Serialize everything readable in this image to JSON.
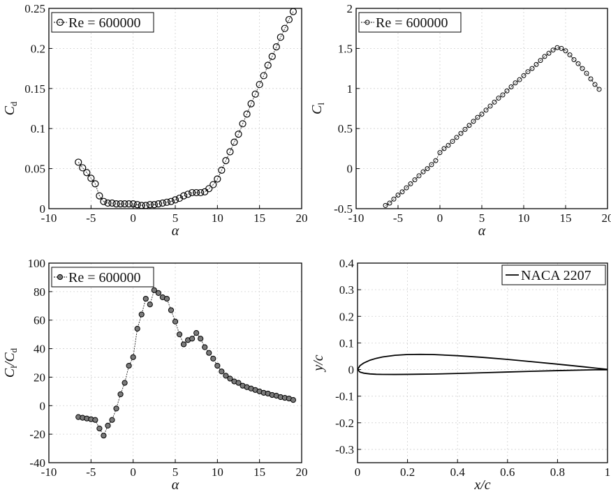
{
  "chart_data": [
    {
      "id": "cd",
      "type": "line",
      "xlabel": "α",
      "ylabel": "C",
      "ylabel_sub": "d",
      "xlim": [
        -10,
        20
      ],
      "ylim": [
        0,
        0.25
      ],
      "xticks": [
        "-10",
        "-5",
        "0",
        "5",
        "10",
        "15",
        "20"
      ],
      "yticks": [
        "0",
        "0.05",
        "0.1",
        "0.15",
        "0.2",
        "0.25"
      ],
      "grid": true,
      "legend_position": "top-left",
      "series": [
        {
          "name": "Re = 600000",
          "marker": "circle-open",
          "x": [
            -6.5,
            -6,
            -5.5,
            -5,
            -4.5,
            -4,
            -3.5,
            -3,
            -2.5,
            -2,
            -1.5,
            -1,
            -0.5,
            0,
            0.5,
            1,
            1.5,
            2,
            2.5,
            3,
            3.5,
            4,
            4.5,
            5,
            5.5,
            6,
            6.5,
            7,
            7.5,
            8,
            8.5,
            9,
            9.5,
            10,
            10.5,
            11,
            11.5,
            12,
            12.5,
            13,
            13.5,
            14,
            14.5,
            15,
            15.5,
            16,
            16.5,
            17,
            17.5,
            18,
            18.5,
            19
          ],
          "y": [
            0.058,
            0.051,
            0.045,
            0.038,
            0.031,
            0.016,
            0.009,
            0.007,
            0.007,
            0.006,
            0.006,
            0.006,
            0.006,
            0.006,
            0.005,
            0.004,
            0.004,
            0.005,
            0.005,
            0.006,
            0.007,
            0.008,
            0.009,
            0.011,
            0.013,
            0.016,
            0.018,
            0.02,
            0.02,
            0.02,
            0.021,
            0.025,
            0.03,
            0.037,
            0.048,
            0.06,
            0.071,
            0.083,
            0.093,
            0.106,
            0.118,
            0.131,
            0.143,
            0.155,
            0.166,
            0.179,
            0.19,
            0.202,
            0.214,
            0.225,
            0.236,
            0.246
          ]
        }
      ]
    },
    {
      "id": "cl",
      "type": "line",
      "xlabel": "α",
      "ylabel": "C",
      "ylabel_sub": "l",
      "xlim": [
        -10,
        20
      ],
      "ylim": [
        -0.5,
        2
      ],
      "xticks": [
        "-10",
        "-5",
        "0",
        "5",
        "10",
        "15",
        "20"
      ],
      "yticks": [
        "-0.5",
        "0",
        "0.5",
        "1",
        "1.5",
        "2"
      ],
      "grid": true,
      "legend_position": "top-left",
      "series": [
        {
          "name": "Re = 600000",
          "marker": "circle-open-small",
          "x": [
            -6.5,
            -6,
            -5.5,
            -5,
            -4.5,
            -4,
            -3.5,
            -3,
            -2.5,
            -2,
            -1.5,
            -1,
            -0.5,
            0,
            0.5,
            1,
            1.5,
            2,
            2.5,
            3,
            3.5,
            4,
            4.5,
            5,
            5.5,
            6,
            6.5,
            7,
            7.5,
            8,
            8.5,
            9,
            9.5,
            10,
            10.5,
            11,
            11.5,
            12,
            12.5,
            13,
            13.5,
            14,
            14.5,
            15,
            15.5,
            16,
            16.5,
            17,
            17.5,
            18,
            18.5,
            19
          ],
          "y": [
            -0.46,
            -0.43,
            -0.38,
            -0.33,
            -0.29,
            -0.24,
            -0.19,
            -0.14,
            -0.09,
            -0.04,
            0.0,
            0.05,
            0.1,
            0.2,
            0.25,
            0.29,
            0.34,
            0.39,
            0.44,
            0.49,
            0.54,
            0.59,
            0.64,
            0.68,
            0.73,
            0.78,
            0.83,
            0.88,
            0.92,
            0.97,
            1.02,
            1.07,
            1.11,
            1.16,
            1.21,
            1.25,
            1.3,
            1.35,
            1.4,
            1.44,
            1.48,
            1.51,
            1.5,
            1.47,
            1.42,
            1.36,
            1.31,
            1.25,
            1.19,
            1.12,
            1.05,
            0.99
          ]
        }
      ]
    },
    {
      "id": "clcd",
      "type": "line",
      "xlabel": "α",
      "ylabel": "C",
      "ylabel_sub": "l",
      "ylabel_mid": "/C",
      "ylabel_sub2": "d",
      "xlim": [
        -10,
        20
      ],
      "ylim": [
        -40,
        100
      ],
      "xticks": [
        "-10",
        "-5",
        "0",
        "5",
        "10",
        "15",
        "20"
      ],
      "yticks": [
        "-40",
        "-20",
        "0",
        "20",
        "40",
        "60",
        "80",
        "100"
      ],
      "grid": true,
      "legend_position": "top-left",
      "series": [
        {
          "name": "Re = 600000",
          "marker": "circle-filled",
          "x": [
            -6.5,
            -6,
            -5.5,
            -5,
            -4.5,
            -4,
            -3.5,
            -3,
            -2.5,
            -2,
            -1.5,
            -1,
            -0.5,
            0,
            0.5,
            1,
            1.5,
            2,
            2.5,
            3,
            3.5,
            4,
            4.5,
            5,
            5.5,
            6,
            6.5,
            7,
            7.5,
            8,
            8.5,
            9,
            9.5,
            10,
            10.5,
            11,
            11.5,
            12,
            12.5,
            13,
            13.5,
            14,
            14.5,
            15,
            15.5,
            16,
            16.5,
            17,
            17.5,
            18,
            18.5,
            19
          ],
          "y": [
            -8,
            -8.5,
            -9,
            -9.5,
            -10,
            -16,
            -21,
            -14,
            -10,
            -2,
            8,
            16,
            28,
            34,
            54,
            64,
            75,
            71,
            81,
            79,
            76,
            75,
            67,
            59,
            50,
            43,
            46,
            47,
            51,
            47,
            41,
            37,
            33,
            28,
            24,
            21,
            19,
            17,
            16,
            14,
            13,
            12,
            11,
            10,
            9,
            8.5,
            7.5,
            7,
            6,
            5.5,
            5,
            4
          ]
        }
      ]
    },
    {
      "id": "airfoil",
      "type": "line",
      "xlabel": "x/c",
      "ylabel": "y/c",
      "xlim": [
        0,
        1
      ],
      "ylim": [
        -0.35,
        0.4
      ],
      "xticks": [
        "0",
        "0.2",
        "0.4",
        "0.6",
        "0.8",
        "1"
      ],
      "yticks": [
        "-0.3",
        "-0.2",
        "-0.1",
        "0",
        "0.1",
        "0.2",
        "0.3",
        "0.4"
      ],
      "grid": true,
      "legend_position": "top-right",
      "series": [
        {
          "name": "NACA 2207",
          "marker": "none",
          "upper_x": [
            0,
            0.01,
            0.025,
            0.05,
            0.075,
            0.1,
            0.15,
            0.2,
            0.25,
            0.3,
            0.4,
            0.5,
            0.6,
            0.7,
            0.8,
            0.9,
            0.95,
            1.0
          ],
          "upper_y": [
            0,
            0.0148,
            0.0246,
            0.0352,
            0.0422,
            0.0473,
            0.0536,
            0.0565,
            0.0572,
            0.0564,
            0.0521,
            0.0458,
            0.0381,
            0.0292,
            0.0202,
            0.0107,
            0.0057,
            0.0007
          ],
          "lower_x": [
            0,
            0.01,
            0.025,
            0.05,
            0.075,
            0.1,
            0.15,
            0.2,
            0.25,
            0.3,
            0.4,
            0.5,
            0.6,
            0.7,
            0.8,
            0.9,
            0.95,
            1.0
          ],
          "lower_y": [
            0,
            -0.0097,
            -0.0135,
            -0.0165,
            -0.0178,
            -0.0183,
            -0.0184,
            -0.0181,
            -0.0175,
            -0.0169,
            -0.0147,
            -0.012,
            -0.0093,
            -0.0065,
            -0.004,
            -0.0018,
            -0.0009,
            -0.0007
          ]
        }
      ]
    }
  ]
}
